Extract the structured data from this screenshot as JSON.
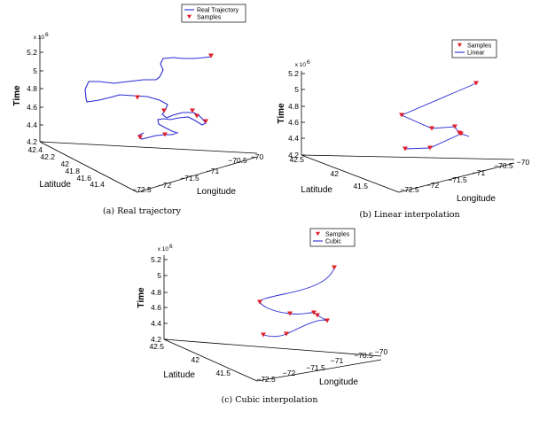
{
  "colors": {
    "line": "#2b2bd6",
    "marker": "#e0202a",
    "axis": "#000000",
    "background": "#ffffff"
  },
  "common_axes": {
    "zlabel": "Time",
    "xlabel": "Longitude",
    "ylabel": "Latitude",
    "z_exponent": "x 10",
    "z_exponent_power": "6",
    "z_ticks": [
      "4.2",
      "4.4",
      "4.6",
      "4.8",
      "5",
      "5.2"
    ]
  },
  "chart_data": [
    {
      "type": "line",
      "caption": "(a) Real trajectory",
      "legend": {
        "placement": "top-center",
        "entries": [
          "Real Trajectory",
          "Samples"
        ]
      },
      "lon_ticks": [
        "−72.5",
        "−72",
        "−71.5",
        "−71",
        "−70.5",
        "−70"
      ],
      "lat_ticks": [
        "41.4",
        "41.6",
        "41.8",
        "42",
        "42.2",
        "42.4"
      ],
      "zlim": [
        4.2,
        5.2
      ],
      "series": [
        {
          "name": "Real Trajectory",
          "style": "line",
          "color": "#2b2bd6"
        },
        {
          "name": "Samples",
          "style": "marker",
          "color": "#e0202a"
        }
      ]
    },
    {
      "type": "line",
      "caption": "(b) Linear interpolation",
      "legend": {
        "placement": "top-right",
        "entries": [
          "Samples",
          "Linear"
        ]
      },
      "lon_ticks": [
        "−72.5",
        "−72",
        "−71.5",
        "−71",
        "−70.5",
        "−70"
      ],
      "lat_ticks": [
        "41.5",
        "42",
        "42.5"
      ],
      "zlim": [
        4.2,
        5.2
      ],
      "series": [
        {
          "name": "Samples",
          "style": "marker",
          "color": "#e0202a"
        },
        {
          "name": "Linear",
          "style": "line",
          "color": "#2b2bd6"
        }
      ]
    },
    {
      "type": "line",
      "caption": "(c) Cubic interpolation",
      "legend": {
        "placement": "top-center",
        "entries": [
          "Samples",
          "Cubic"
        ]
      },
      "lon_ticks": [
        "−72.5",
        "−72",
        "−71.5",
        "−71",
        "−70.5",
        "−70"
      ],
      "lat_ticks": [
        "41.5",
        "42",
        "42.5"
      ],
      "zlim": [
        4.2,
        5.2
      ],
      "series": [
        {
          "name": "Samples",
          "style": "marker",
          "color": "#e0202a"
        },
        {
          "name": "Cubic",
          "style": "line",
          "color": "#2b2bd6"
        }
      ]
    }
  ]
}
